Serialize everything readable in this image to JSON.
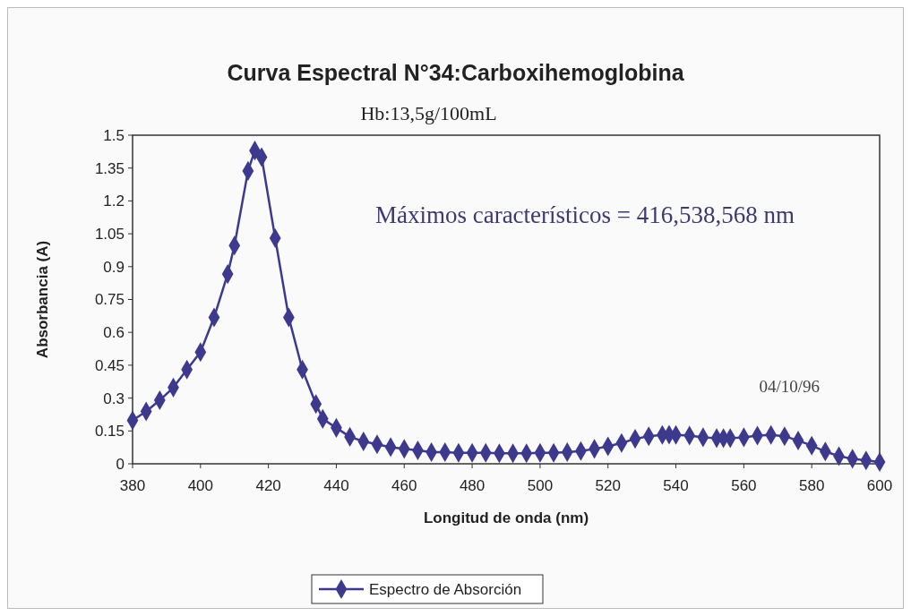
{
  "chart_data": {
    "type": "line",
    "title": "Curva Espectral N°34:Carboxihemoglobina",
    "subtitle": "Hb:13,5g/100mL",
    "xlabel": "Longitud de onda (nm)",
    "ylabel": "Absorbancia (A)",
    "annotations": [
      "Máximos característicos = 416,538,568 nm",
      "04/10/96"
    ],
    "xlim": [
      380,
      600
    ],
    "xticks": [
      380,
      400,
      420,
      440,
      460,
      480,
      500,
      520,
      540,
      560,
      580,
      600
    ],
    "ylim": [
      0,
      1.5
    ],
    "yticks": [
      0,
      0.15,
      0.3,
      0.45,
      0.6,
      0.75,
      0.9,
      1.05,
      1.2,
      1.35,
      1.5
    ],
    "grid": false,
    "legend": "bottom",
    "marker": "diamond",
    "line_style": "solid",
    "series": [
      {
        "name": "Espectro de Absorción",
        "color": "#3d3a8e",
        "x": [
          380,
          384,
          388,
          392,
          396,
          400,
          404,
          408,
          410,
          414,
          416,
          418,
          422,
          426,
          430,
          434,
          436,
          440,
          444,
          448,
          452,
          456,
          460,
          464,
          468,
          472,
          476,
          480,
          484,
          488,
          492,
          496,
          500,
          504,
          508,
          512,
          516,
          520,
          524,
          528,
          532,
          536,
          538,
          540,
          544,
          548,
          552,
          554,
          556,
          560,
          564,
          568,
          572,
          576,
          580,
          584,
          588,
          592,
          596,
          600
        ],
        "values": [
          0.198,
          0.239,
          0.29,
          0.348,
          0.43,
          0.51,
          0.668,
          0.866,
          0.996,
          1.337,
          1.43,
          1.4,
          1.03,
          0.668,
          0.43,
          0.273,
          0.205,
          0.164,
          0.123,
          0.102,
          0.089,
          0.076,
          0.068,
          0.061,
          0.053,
          0.053,
          0.05,
          0.05,
          0.05,
          0.048,
          0.048,
          0.048,
          0.05,
          0.05,
          0.053,
          0.058,
          0.068,
          0.08,
          0.095,
          0.114,
          0.126,
          0.132,
          0.133,
          0.132,
          0.129,
          0.121,
          0.117,
          0.117,
          0.117,
          0.121,
          0.129,
          0.132,
          0.126,
          0.106,
          0.083,
          0.056,
          0.035,
          0.023,
          0.015,
          0.008
        ]
      }
    ]
  }
}
